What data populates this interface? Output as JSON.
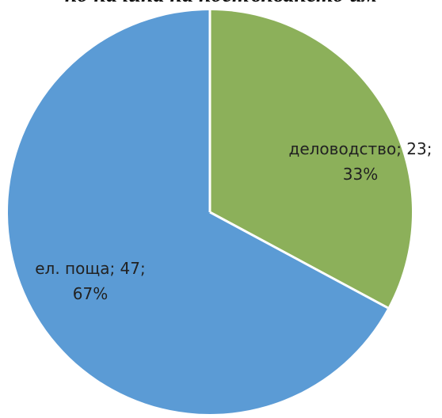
{
  "chart_data": {
    "type": "pie",
    "title": "по начина на постъпването им",
    "slices": [
      {
        "label": "деловодство",
        "value": 23,
        "percent": "33%",
        "color": "#8cb05a"
      },
      {
        "label": "ел. поща",
        "value": 47,
        "percent": "67%",
        "color": "#5b9bd5"
      }
    ],
    "start": "12 o'clock",
    "direction": "clockwise",
    "legend": "none"
  },
  "labels": {
    "green_line1": "деловодство; 23;",
    "green_line2": "33%",
    "blue_line1": "ел. поща; 47;",
    "blue_line2": "67%"
  }
}
